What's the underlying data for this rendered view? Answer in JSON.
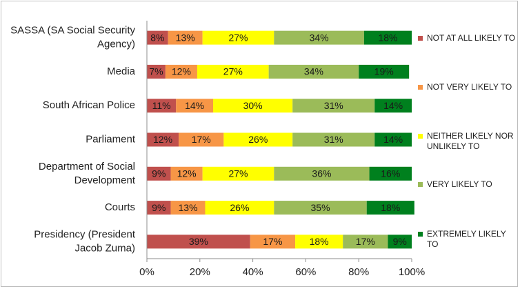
{
  "chart_data": {
    "type": "bar",
    "orientation": "horizontal-stacked-100",
    "title": "",
    "xlabel": "",
    "ylabel": "",
    "xlim": [
      0,
      100
    ],
    "x_ticks": [
      "0%",
      "20%",
      "40%",
      "60%",
      "80%",
      "100%"
    ],
    "categories": [
      [
        "SASSA (SA Social Security",
        "Agency)"
      ],
      [
        "Media"
      ],
      [
        "South African Police"
      ],
      [
        "Parliament"
      ],
      [
        "Department of Social",
        "Development"
      ],
      [
        "Courts"
      ],
      [
        "Presidency (President",
        "Jacob Zuma)"
      ]
    ],
    "series": [
      {
        "name": [
          "NOT AT ALL LIKELY TO"
        ],
        "color": "#c0504d",
        "values": [
          8,
          7,
          11,
          12,
          9,
          9,
          39
        ]
      },
      {
        "name": [
          "NOT VERY LIKELY TO"
        ],
        "color": "#f79646",
        "values": [
          13,
          12,
          14,
          17,
          12,
          13,
          17
        ]
      },
      {
        "name": [
          "NEITHER LIKELY NOR",
          "UNLIKELY TO"
        ],
        "color": "#ffff00",
        "values": [
          27,
          27,
          30,
          26,
          27,
          26,
          18
        ]
      },
      {
        "name": [
          "VERY LIKELY TO"
        ],
        "color": "#9bbb59",
        "values": [
          34,
          34,
          31,
          31,
          36,
          35,
          17
        ]
      },
      {
        "name": [
          "EXTREMELY LIKELY",
          "TO"
        ],
        "color": "#00801e",
        "values": [
          18,
          19,
          14,
          14,
          16,
          18,
          9
        ]
      }
    ],
    "value_suffix": "%",
    "grid": false,
    "legend_position": "right"
  }
}
